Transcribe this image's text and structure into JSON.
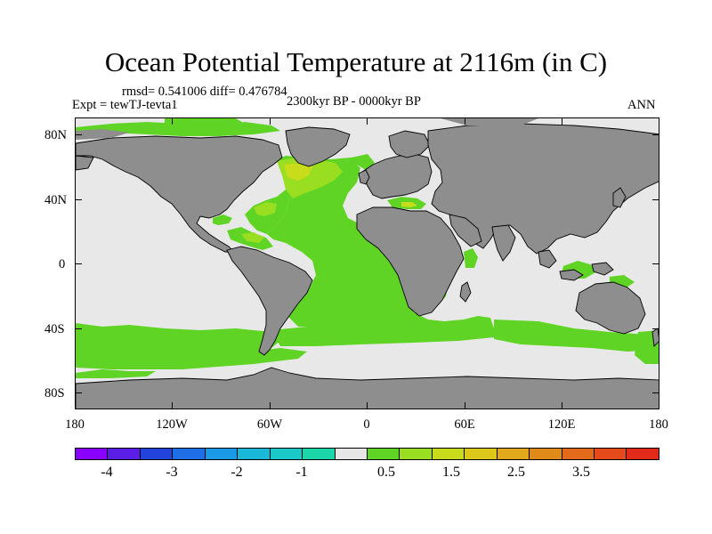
{
  "title": "Ocean Potential Temperature at 2116m (in C)",
  "stats": "rmsd= 0.541006 diff= 0.476784",
  "experiment": "Expt = tewTJ-tevta1",
  "period": "2300kyr BP - 0000kyr BP",
  "season": "ANN",
  "y_axis_labels": [
    "80N",
    "40N",
    "0",
    "40S",
    "80S"
  ],
  "x_axis_labels": [
    "180",
    "120W",
    "60W",
    "0",
    "60E",
    "120E",
    "180"
  ],
  "colorbar": {
    "colors": [
      "#8a00ff",
      "#5a1ee6",
      "#2244dd",
      "#1e6fe6",
      "#1a9ae6",
      "#1ab8d8",
      "#1ac8c8",
      "#1ad6a8",
      "#e6e6e6",
      "#5fd424",
      "#9ade22",
      "#c8dc1c",
      "#dcc81a",
      "#e0a81a",
      "#e08a1a",
      "#e26a1a",
      "#e44a1a",
      "#e22a1a"
    ],
    "labels": [
      "-4",
      "-3",
      "-2",
      "-1",
      "0.5",
      "1.5",
      "2.5",
      "3.5"
    ]
  },
  "map_colors": {
    "land": "#8e8e8e",
    "ocean_neutral": "#e8e8e8",
    "anomaly_green": "#5fd424",
    "anomaly_yellowgreen": "#9ade22",
    "anomaly_yellow": "#c8dc1c",
    "coastline": "#000000"
  }
}
